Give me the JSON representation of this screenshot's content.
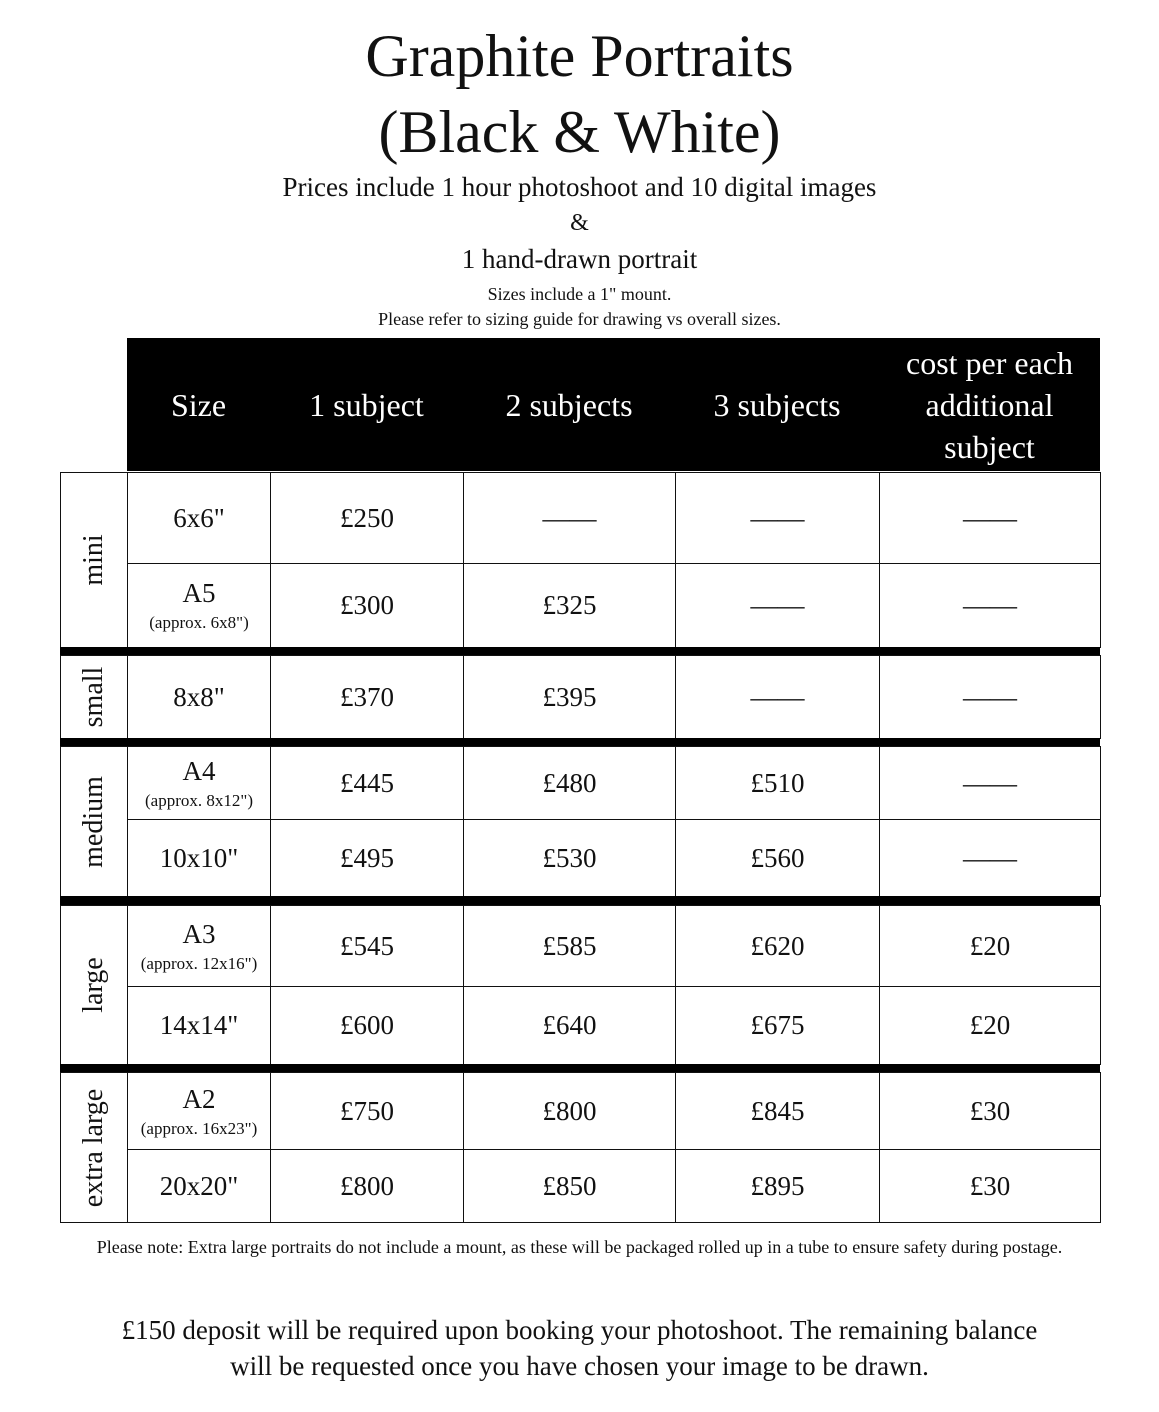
{
  "title_line1": "Graphite Portraits",
  "title_line2": "(Black & White)",
  "subtitle": "Prices include 1 hour photoshoot and 10 digital images",
  "ampersand": "&",
  "subtitle2": "1 hand-drawn portrait",
  "mount_note": "Sizes include a 1\" mount.",
  "sizing_note": "Please refer to sizing guide for drawing vs overall sizes.",
  "table": {
    "headers": [
      "Size",
      "1 subject",
      "2 subjects",
      "3 subjects",
      "cost per each additional subject"
    ],
    "groups": [
      {
        "label": "mini",
        "rows": [
          {
            "size": "6x6\"",
            "approx": "",
            "prices": [
              "£250",
              "——",
              "——",
              "——"
            ]
          },
          {
            "size": "A5",
            "approx": "(approx. 6x8\")",
            "prices": [
              "£300",
              "£325",
              "——",
              "——"
            ]
          }
        ]
      },
      {
        "label": "small",
        "rows": [
          {
            "size": "8x8\"",
            "approx": "",
            "prices": [
              "£370",
              "£395",
              "——",
              "——"
            ]
          }
        ]
      },
      {
        "label": "medium",
        "rows": [
          {
            "size": "A4",
            "approx": "(approx. 8x12\")",
            "prices": [
              "£445",
              "£480",
              "£510",
              "——"
            ]
          },
          {
            "size": "10x10\"",
            "approx": "",
            "prices": [
              "£495",
              "£530",
              "£560",
              "——"
            ]
          }
        ]
      },
      {
        "label": "large",
        "rows": [
          {
            "size": "A3",
            "approx": "(approx. 12x16\")",
            "prices": [
              "£545",
              "£585",
              "£620",
              "£20"
            ]
          },
          {
            "size": "14x14\"",
            "approx": "",
            "prices": [
              "£600",
              "£640",
              "£675",
              "£20"
            ]
          }
        ]
      },
      {
        "label": "extra large",
        "rows": [
          {
            "size": "A2",
            "approx": "(approx. 16x23\")",
            "prices": [
              "£750",
              "£800",
              "£845",
              "£30"
            ]
          },
          {
            "size": "20x20\"",
            "approx": "",
            "prices": [
              "£800",
              "£850",
              "£895",
              "£30"
            ]
          }
        ]
      }
    ]
  },
  "footnote": "Please note: Extra large portraits do not include a mount, as these will be packaged rolled up in a tube to ensure safety during postage.",
  "deposit_note": "£150 deposit will be required upon booking your photoshoot. The remaining balance will be requested once you have chosen your image to be drawn."
}
